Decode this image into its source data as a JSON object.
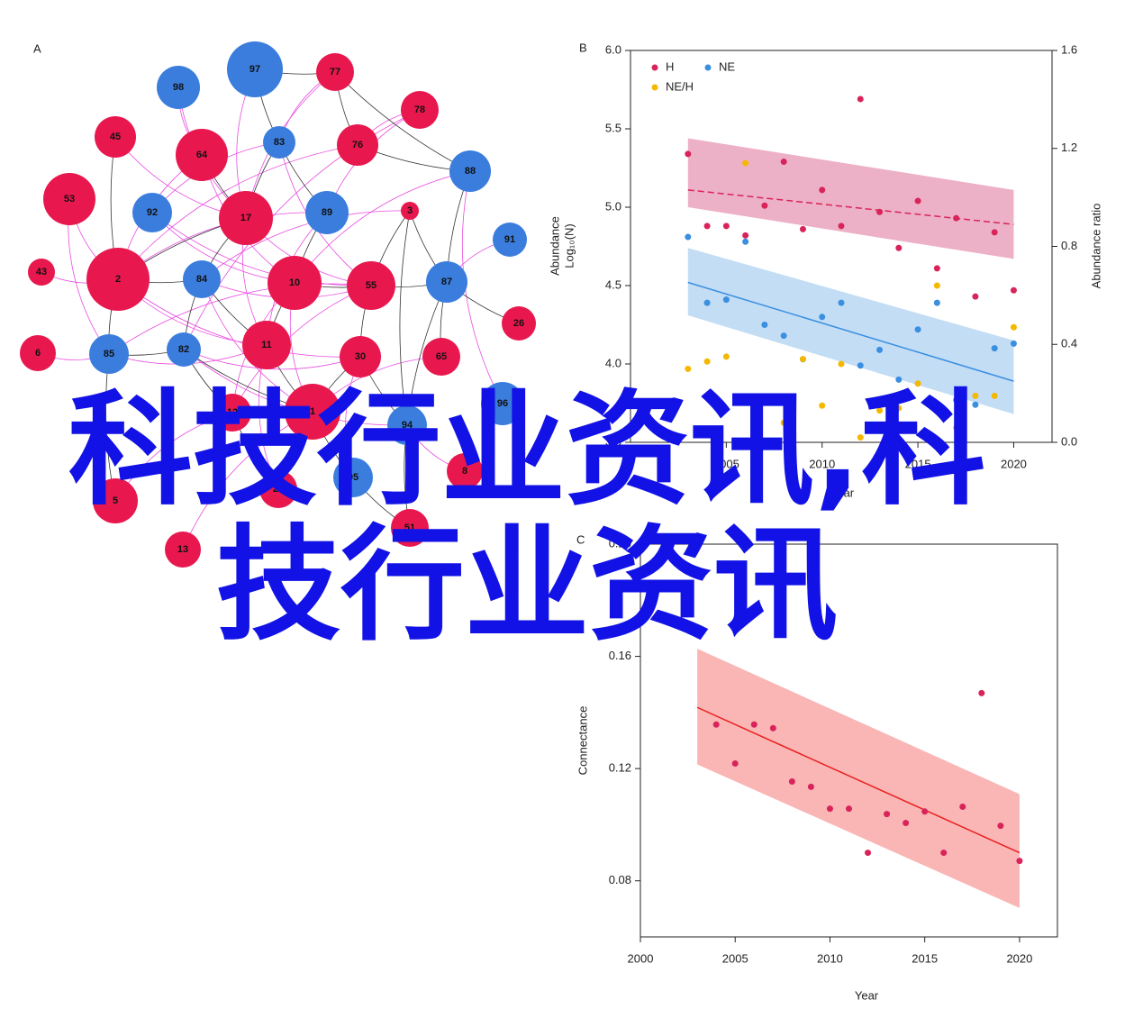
{
  "network": {
    "label": "A",
    "colors": {
      "red": "#e8184f",
      "blue": "#3b7ddd"
    },
    "nodes": [
      {
        "label": "97",
        "group": "blue"
      },
      {
        "label": "77",
        "group": "red"
      },
      {
        "label": "98",
        "group": "blue"
      },
      {
        "label": "78",
        "group": "red"
      },
      {
        "label": "45",
        "group": "red"
      },
      {
        "label": "64",
        "group": "red"
      },
      {
        "label": "83",
        "group": "blue"
      },
      {
        "label": "76",
        "group": "red"
      },
      {
        "label": "88",
        "group": "blue"
      },
      {
        "label": "53",
        "group": "red"
      },
      {
        "label": "92",
        "group": "blue"
      },
      {
        "label": "17",
        "group": "red"
      },
      {
        "label": "89",
        "group": "blue"
      },
      {
        "label": "3",
        "group": "red"
      },
      {
        "label": "91",
        "group": "blue"
      },
      {
        "label": "43",
        "group": "red"
      },
      {
        "label": "2",
        "group": "red"
      },
      {
        "label": "84",
        "group": "blue"
      },
      {
        "label": "10",
        "group": "red"
      },
      {
        "label": "55",
        "group": "red"
      },
      {
        "label": "87",
        "group": "blue"
      },
      {
        "label": "26",
        "group": "red"
      },
      {
        "label": "6",
        "group": "red"
      },
      {
        "label": "85",
        "group": "blue"
      },
      {
        "label": "82",
        "group": "blue"
      },
      {
        "label": "11",
        "group": "red"
      },
      {
        "label": "30",
        "group": "red"
      },
      {
        "label": "65",
        "group": "red"
      },
      {
        "label": "96",
        "group": "blue"
      },
      {
        "label": "12",
        "group": "red"
      },
      {
        "label": "1",
        "group": "red"
      },
      {
        "label": "94",
        "group": "blue"
      },
      {
        "label": "95",
        "group": "blue"
      },
      {
        "label": "27",
        "group": "red"
      },
      {
        "label": "5",
        "group": "red"
      },
      {
        "label": "8",
        "group": "red"
      },
      {
        "label": "51",
        "group": "red"
      },
      {
        "label": "13",
        "group": "red"
      }
    ]
  },
  "chart_data": [
    {
      "type": "scatter",
      "label": "B",
      "xlabel": "Year",
      "ylabel": [
        "Abundance",
        "Log₁₀(N)"
      ],
      "y2label": "Abundance ratio",
      "xlim": [
        2000,
        2022
      ],
      "xticks": [
        2005,
        2010,
        2015,
        2020
      ],
      "ylim": [
        3.5,
        6.0
      ],
      "yticks": [
        3.5,
        {
          "value": 4,
          "label": "4.0"
        },
        4.5,
        {
          "value": 5,
          "label": "5.0"
        },
        5.5,
        {
          "value": 6,
          "label": "6.0"
        }
      ],
      "y2lim": [
        0,
        1.6
      ],
      "y2ticks": [
        {
          "value": 0,
          "label": "0.0"
        },
        0.4,
        0.8,
        1.2,
        {
          "value": 1.6,
          "label": "1.6"
        }
      ],
      "legend": "upper left",
      "x": [
        2003,
        2004,
        2005,
        2006,
        2007,
        2008,
        2009,
        2010,
        2011,
        2012,
        2013,
        2014,
        2015,
        2016,
        2017,
        2018,
        2019,
        2020
      ],
      "series": [
        {
          "name": "H",
          "color": "#d8245a",
          "values": [
            5.34,
            4.88,
            4.88,
            4.82,
            5.01,
            5.29,
            4.86,
            5.11,
            4.88,
            5.69,
            4.97,
            4.74,
            5.04,
            4.61,
            4.93,
            4.43,
            4.84,
            4.47
          ]
        },
        {
          "name": "NE",
          "color": "#3a8fe0",
          "values": [
            4.81,
            4.39,
            4.41,
            4.78,
            4.25,
            4.18,
            4.03,
            4.3,
            4.39,
            3.99,
            4.09,
            3.9,
            4.22,
            4.39,
            3.77,
            3.74,
            4.1,
            4.13
          ]
        },
        {
          "name": "NE/H",
          "color": "#f5b800",
          "axis": "y2",
          "values": [
            0.3,
            0.33,
            0.35,
            1.14,
            0.18,
            0.08,
            0.34,
            0.15,
            0.32,
            0.02,
            0.13,
            0.14,
            0.24,
            0.64,
            0.06,
            0.19,
            0.19,
            0.47
          ]
        }
      ],
      "trends": [
        {
          "color": "#d8245a",
          "band_color": "#eaa3bd",
          "dashed": true,
          "x": [
            2003,
            2020
          ],
          "values": [
            5.11,
            4.89
          ],
          "band_upper": [
            5.44,
            5.11
          ],
          "band_lower": [
            5.0,
            4.67
          ]
        },
        {
          "color": "#3a8fe0",
          "band_color": "#b9d7f3",
          "dashed": false,
          "x": [
            2003,
            2020
          ],
          "values": [
            4.52,
            3.89
          ],
          "band_upper": [
            4.74,
            4.15
          ],
          "band_lower": [
            4.31,
            3.68
          ]
        }
      ]
    },
    {
      "type": "scatter",
      "label": "C",
      "xlabel": "Year",
      "ylabel": [
        "Connectance"
      ],
      "xlim": [
        2000,
        2022
      ],
      "xticks": [
        2000,
        2005,
        2010,
        2015,
        2020
      ],
      "ylim": [
        0.06,
        0.2
      ],
      "yticks": [
        0.08,
        0.12,
        0.16,
        {
          "value": 0.2,
          "label": "0.20"
        }
      ],
      "x": [
        2004,
        2005,
        2006,
        2007,
        2008,
        2009,
        2010,
        2011,
        2012,
        2013,
        2014,
        2015,
        2016,
        2017,
        2018,
        2019,
        2020
      ],
      "color": "#d8245a",
      "values": [
        0.1357,
        0.1218,
        0.1357,
        0.1344,
        0.1154,
        0.1135,
        0.1057,
        0.1057,
        0.09,
        0.1038,
        0.1006,
        0.1047,
        0.09,
        0.1064,
        0.1469,
        0.0996,
        0.0871
      ],
      "trends": [
        {
          "color": "#e82020",
          "band_color": "#f9a8a8",
          "dashed": false,
          "x": [
            2003,
            2020
          ],
          "values": [
            0.1418,
            0.09
          ],
          "band_upper": [
            0.1627,
            0.1109
          ],
          "band_lower": [
            0.1215,
            0.0703
          ]
        }
      ]
    }
  ],
  "overlay_text": "科技行业资讯,科技行业资讯"
}
